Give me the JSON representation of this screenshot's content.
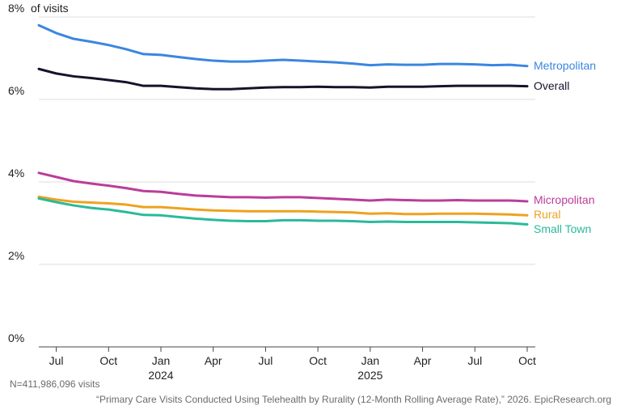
{
  "chart_data": {
    "type": "line",
    "y_unit_label": "of visits",
    "ylim": [
      0,
      8
    ],
    "y_ticks": [
      {
        "value": 0,
        "label": "0%"
      },
      {
        "value": 2,
        "label": "2%"
      },
      {
        "value": 4,
        "label": "4%"
      },
      {
        "value": 6,
        "label": "6%"
      },
      {
        "value": 8,
        "label": "8%"
      }
    ],
    "grid": true,
    "x_start": "2023-06",
    "x_end": "2025-10",
    "x_ticks": [
      {
        "month": "2023-07",
        "label": "Jul",
        "year": ""
      },
      {
        "month": "2023-10",
        "label": "Oct",
        "year": ""
      },
      {
        "month": "2024-01",
        "label": "Jan",
        "year": "2024"
      },
      {
        "month": "2024-04",
        "label": "Apr",
        "year": ""
      },
      {
        "month": "2024-07",
        "label": "Jul",
        "year": ""
      },
      {
        "month": "2024-10",
        "label": "Oct",
        "year": ""
      },
      {
        "month": "2025-01",
        "label": "Jan",
        "year": "2025"
      },
      {
        "month": "2025-04",
        "label": "Apr",
        "year": ""
      },
      {
        "month": "2025-07",
        "label": "Jul",
        "year": ""
      },
      {
        "month": "2025-10",
        "label": "Oct",
        "year": ""
      }
    ],
    "x": [
      "2023-06",
      "2023-07",
      "2023-08",
      "2023-09",
      "2023-10",
      "2023-11",
      "2023-12",
      "2024-01",
      "2024-02",
      "2024-03",
      "2024-04",
      "2024-05",
      "2024-06",
      "2024-07",
      "2024-08",
      "2024-09",
      "2024-10",
      "2024-11",
      "2024-12",
      "2025-01",
      "2025-02",
      "2025-03",
      "2025-04",
      "2025-05",
      "2025-06",
      "2025-07",
      "2025-08",
      "2025-09",
      "2025-10"
    ],
    "series": [
      {
        "name": "Metropolitan",
        "color": "#3a86e0",
        "values": [
          7.8,
          7.61,
          7.47,
          7.4,
          7.32,
          7.22,
          7.1,
          7.08,
          7.03,
          6.98,
          6.94,
          6.92,
          6.92,
          6.94,
          6.96,
          6.94,
          6.92,
          6.9,
          6.87,
          6.83,
          6.85,
          6.84,
          6.84,
          6.86,
          6.86,
          6.85,
          6.83,
          6.84,
          6.81
        ]
      },
      {
        "name": "Overall",
        "color": "#14142b",
        "values": [
          6.74,
          6.63,
          6.56,
          6.52,
          6.47,
          6.42,
          6.33,
          6.33,
          6.3,
          6.27,
          6.25,
          6.25,
          6.27,
          6.29,
          6.3,
          6.3,
          6.31,
          6.3,
          6.3,
          6.29,
          6.31,
          6.31,
          6.31,
          6.32,
          6.33,
          6.33,
          6.33,
          6.33,
          6.32
        ]
      },
      {
        "name": "Micropolitan",
        "color": "#bb3d9a",
        "values": [
          4.22,
          4.12,
          4.02,
          3.96,
          3.91,
          3.85,
          3.78,
          3.76,
          3.71,
          3.67,
          3.65,
          3.63,
          3.63,
          3.62,
          3.63,
          3.63,
          3.61,
          3.59,
          3.57,
          3.55,
          3.57,
          3.56,
          3.55,
          3.55,
          3.56,
          3.55,
          3.55,
          3.55,
          3.53
        ]
      },
      {
        "name": "Rural",
        "color": "#eea21f",
        "values": [
          3.64,
          3.57,
          3.52,
          3.5,
          3.48,
          3.45,
          3.39,
          3.39,
          3.36,
          3.33,
          3.31,
          3.3,
          3.29,
          3.29,
          3.29,
          3.29,
          3.28,
          3.27,
          3.26,
          3.23,
          3.24,
          3.22,
          3.22,
          3.23,
          3.23,
          3.23,
          3.22,
          3.21,
          3.19
        ]
      },
      {
        "name": "Small Town",
        "color": "#2bb99a",
        "values": [
          3.6,
          3.51,
          3.43,
          3.37,
          3.33,
          3.27,
          3.2,
          3.19,
          3.15,
          3.11,
          3.08,
          3.06,
          3.05,
          3.05,
          3.07,
          3.07,
          3.06,
          3.06,
          3.05,
          3.03,
          3.04,
          3.03,
          3.03,
          3.03,
          3.03,
          3.02,
          3.01,
          3.0,
          2.97
        ]
      }
    ]
  },
  "footer": {
    "sample": "N=411,986,096 visits",
    "citation": "“Primary Care Visits Conducted Using Telehealth by Rurality (12-Month Rolling Average Rate),” 2026. EpicResearch.org"
  }
}
